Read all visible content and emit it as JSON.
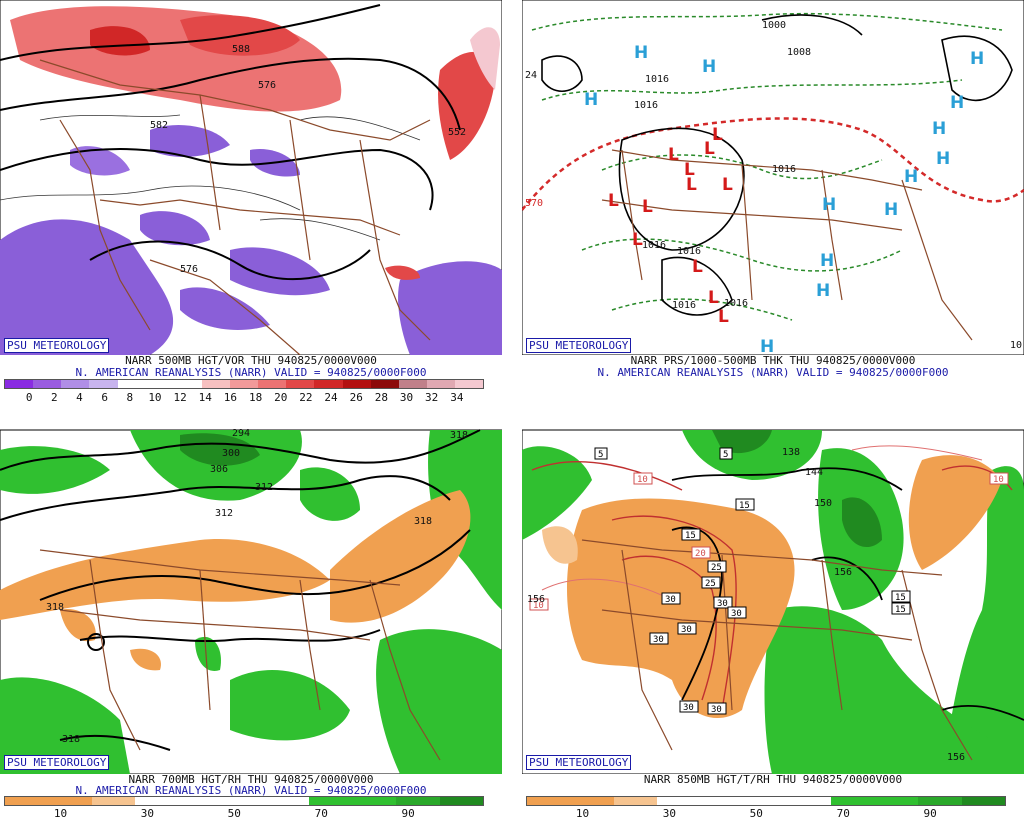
{
  "panels": [
    {
      "badge": "PSU METEOROLOGY",
      "line1": "NARR 500MB HGT/VOR THU 940825/0000V000",
      "line2": "N. AMERICAN REANALYSIS (NARR) VALID = 940825/0000F000",
      "colorbar": [
        "#8a2be2",
        "#9a5ce0",
        "#b08ee6",
        "#c8b4ee",
        "#ffffff",
        "#ffffff",
        "#ffffff",
        "#f7c0c0",
        "#f29a9a",
        "#ec7373",
        "#e24848",
        "#d12727",
        "#b31010",
        "#8c0a0a",
        "#c0808a",
        "#e0a8b2",
        "#f4c8d0"
      ],
      "ticks": [
        "0",
        "2",
        "4",
        "6",
        "8",
        "10",
        "12",
        "14",
        "16",
        "18",
        "20",
        "22",
        "24",
        "26",
        "28",
        "30",
        "32",
        "34"
      ],
      "labels": [
        "588",
        "576",
        "582",
        "552",
        "576"
      ]
    },
    {
      "badge": "PSU METEOROLOGY",
      "line1": "NARR PRS/1000-500MB THK THU 940825/0000V000",
      "line2": "N. AMERICAN REANALYSIS (NARR) VALID = 940825/0000F000",
      "labels": [
        "1000",
        "1008",
        "1016",
        "1016",
        "1016",
        "1016",
        "1016",
        "1016",
        "1016",
        "570",
        "24",
        "10"
      ],
      "H": "H",
      "L": "L"
    },
    {
      "badge": "PSU METEOROLOGY",
      "line1": "NARR 700MB HGT/RH THU 940825/0000V000",
      "line2": "N. AMERICAN REANALYSIS (NARR) VALID = 940825/0000F000",
      "colorbar": [
        "#f0a050",
        "#f0a050",
        "#f6c490",
        "#ffffff",
        "#ffffff",
        "#ffffff",
        "#ffffff",
        "#30c030",
        "#30c030",
        "#2aa82a",
        "#208a20"
      ],
      "ticks": [
        "10",
        "30",
        "50",
        "70",
        "90"
      ],
      "labels": [
        "294",
        "300",
        "306",
        "312",
        "318",
        "318",
        "318",
        "318",
        "312"
      ]
    },
    {
      "badge": "PSU METEOROLOGY",
      "line1": "NARR 850MB HGT/T/RH THU 940825/0000V000",
      "line2": "",
      "colorbar": [
        "#f0a050",
        "#f0a050",
        "#f6c490",
        "#ffffff",
        "#ffffff",
        "#ffffff",
        "#ffffff",
        "#30c030",
        "#30c030",
        "#2aa82a",
        "#208a20"
      ],
      "ticks": [
        "10",
        "30",
        "50",
        "70",
        "90"
      ],
      "labels": [
        "144",
        "150",
        "156",
        "156",
        "156",
        "138"
      ],
      "boxes": [
        "5",
        "5",
        "10",
        "10",
        "10",
        "15",
        "15",
        "15",
        "15",
        "20",
        "25",
        "25",
        "30",
        "30",
        "30",
        "30",
        "30",
        "30",
        "30"
      ]
    }
  ]
}
